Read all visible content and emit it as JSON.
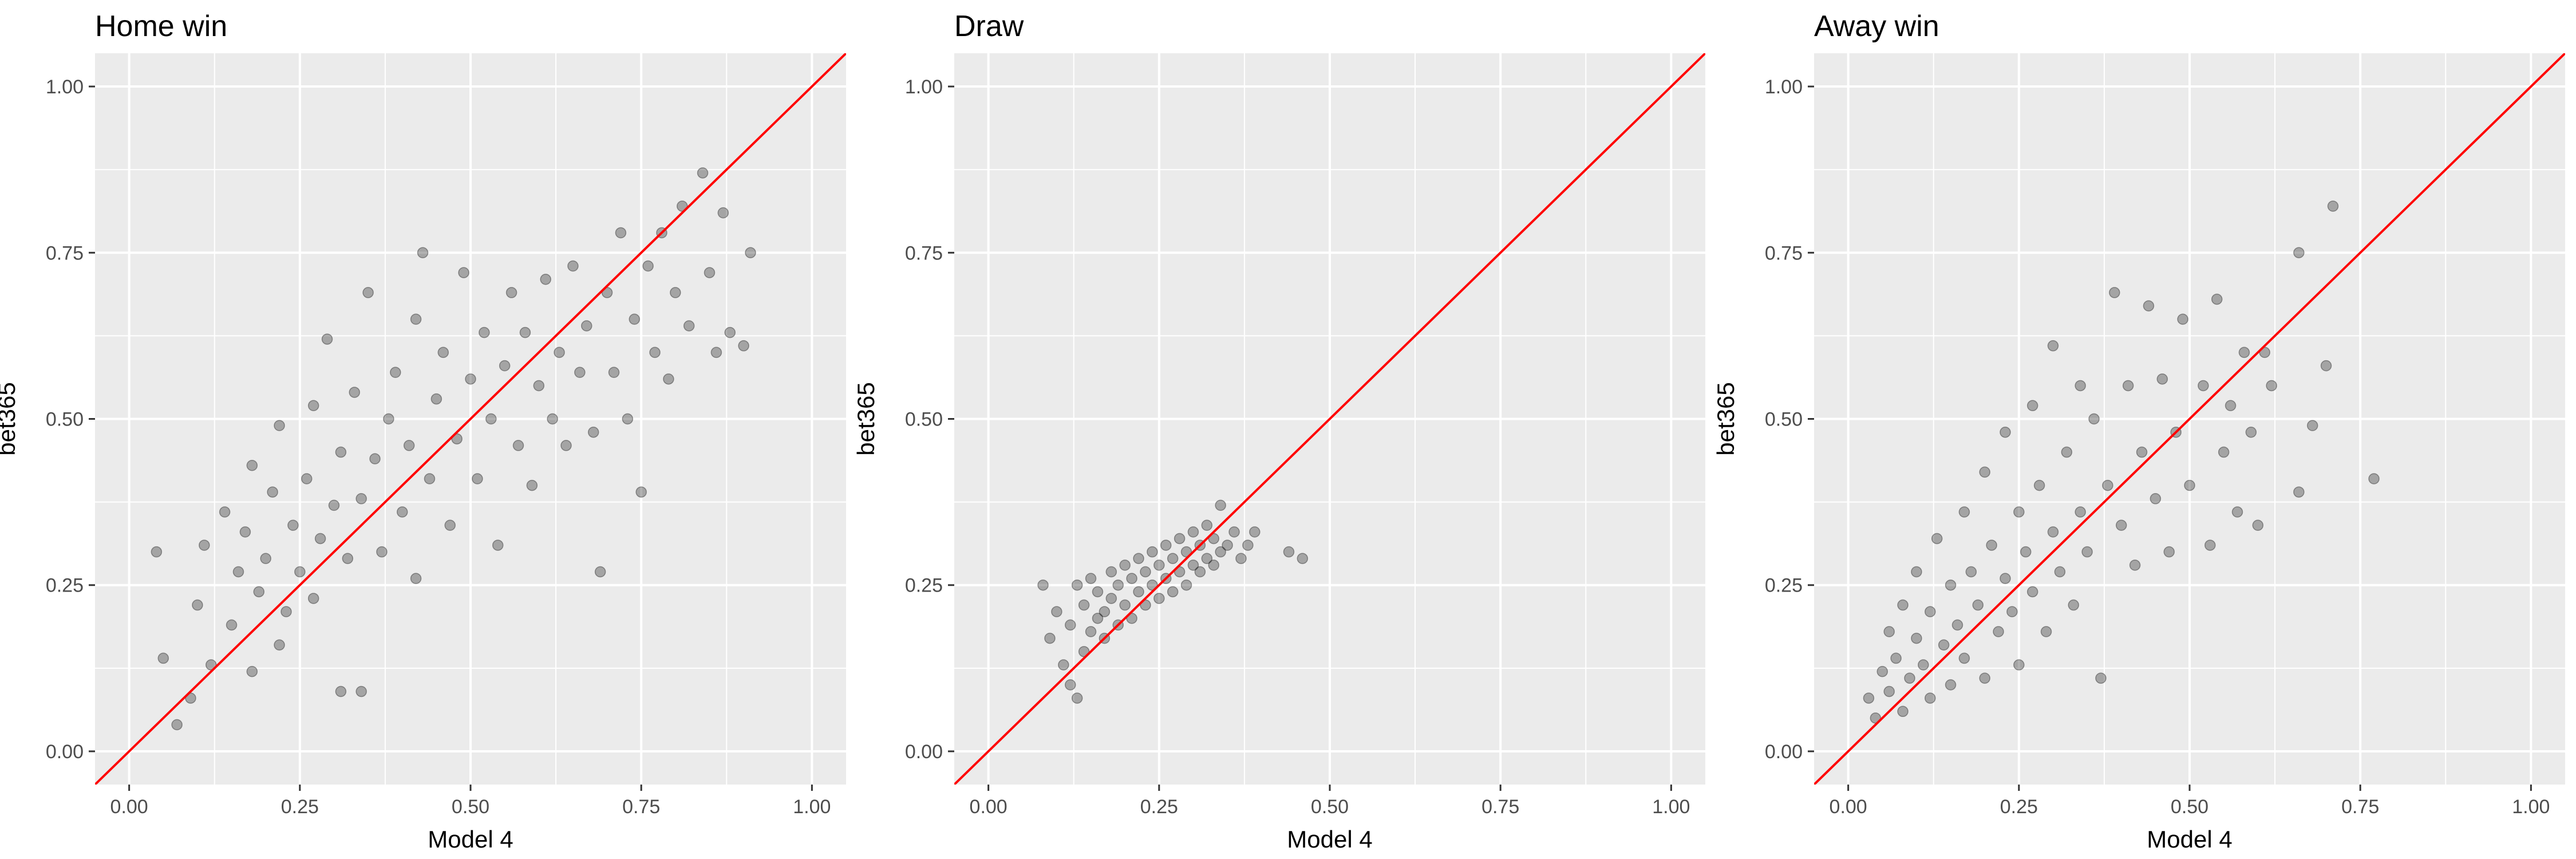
{
  "chart_data": [
    {
      "type": "scatter",
      "title": "Home win",
      "xlabel": "Model 4",
      "ylabel": "bet365",
      "xlim": [
        -0.05,
        1.05
      ],
      "ylim": [
        -0.05,
        1.05
      ],
      "xticks": [
        "0.00",
        "0.25",
        "0.50",
        "0.75",
        "1.00"
      ],
      "yticks": [
        "0.00",
        "0.25",
        "0.50",
        "0.75",
        "1.00"
      ],
      "reference_line": {
        "label": "y = x",
        "color": "#ff0000"
      },
      "point_color": "#000000",
      "point_alpha": 0.3,
      "grid": true,
      "series": [
        {
          "points": [
            [
              0.04,
              0.3
            ],
            [
              0.05,
              0.14
            ],
            [
              0.07,
              0.04
            ],
            [
              0.09,
              0.08
            ],
            [
              0.1,
              0.22
            ],
            [
              0.11,
              0.31
            ],
            [
              0.12,
              0.13
            ],
            [
              0.14,
              0.36
            ],
            [
              0.15,
              0.19
            ],
            [
              0.16,
              0.27
            ],
            [
              0.17,
              0.33
            ],
            [
              0.18,
              0.43
            ],
            [
              0.18,
              0.12
            ],
            [
              0.19,
              0.24
            ],
            [
              0.2,
              0.29
            ],
            [
              0.21,
              0.39
            ],
            [
              0.22,
              0.49
            ],
            [
              0.22,
              0.16
            ],
            [
              0.23,
              0.21
            ],
            [
              0.24,
              0.34
            ],
            [
              0.25,
              0.27
            ],
            [
              0.26,
              0.41
            ],
            [
              0.27,
              0.52
            ],
            [
              0.27,
              0.23
            ],
            [
              0.28,
              0.32
            ],
            [
              0.29,
              0.62
            ],
            [
              0.3,
              0.37
            ],
            [
              0.31,
              0.09
            ],
            [
              0.31,
              0.45
            ],
            [
              0.32,
              0.29
            ],
            [
              0.33,
              0.54
            ],
            [
              0.34,
              0.09
            ],
            [
              0.34,
              0.38
            ],
            [
              0.35,
              0.69
            ],
            [
              0.36,
              0.44
            ],
            [
              0.37,
              0.3
            ],
            [
              0.38,
              0.5
            ],
            [
              0.39,
              0.57
            ],
            [
              0.4,
              0.36
            ],
            [
              0.41,
              0.46
            ],
            [
              0.42,
              0.65
            ],
            [
              0.42,
              0.26
            ],
            [
              0.43,
              0.75
            ],
            [
              0.44,
              0.41
            ],
            [
              0.45,
              0.53
            ],
            [
              0.46,
              0.6
            ],
            [
              0.47,
              0.34
            ],
            [
              0.48,
              0.47
            ],
            [
              0.49,
              0.72
            ],
            [
              0.5,
              0.56
            ],
            [
              0.51,
              0.41
            ],
            [
              0.52,
              0.63
            ],
            [
              0.53,
              0.5
            ],
            [
              0.54,
              0.31
            ],
            [
              0.55,
              0.58
            ],
            [
              0.56,
              0.69
            ],
            [
              0.57,
              0.46
            ],
            [
              0.58,
              0.63
            ],
            [
              0.59,
              0.4
            ],
            [
              0.6,
              0.55
            ],
            [
              0.61,
              0.71
            ],
            [
              0.62,
              0.5
            ],
            [
              0.63,
              0.6
            ],
            [
              0.64,
              0.46
            ],
            [
              0.65,
              0.73
            ],
            [
              0.66,
              0.57
            ],
            [
              0.67,
              0.64
            ],
            [
              0.68,
              0.48
            ],
            [
              0.69,
              0.27
            ],
            [
              0.7,
              0.69
            ],
            [
              0.71,
              0.57
            ],
            [
              0.72,
              0.78
            ],
            [
              0.73,
              0.5
            ],
            [
              0.74,
              0.65
            ],
            [
              0.75,
              0.39
            ],
            [
              0.76,
              0.73
            ],
            [
              0.77,
              0.6
            ],
            [
              0.78,
              0.78
            ],
            [
              0.79,
              0.56
            ],
            [
              0.8,
              0.69
            ],
            [
              0.81,
              0.82
            ],
            [
              0.82,
              0.64
            ],
            [
              0.84,
              0.87
            ],
            [
              0.85,
              0.72
            ],
            [
              0.86,
              0.6
            ],
            [
              0.87,
              0.81
            ],
            [
              0.88,
              0.63
            ],
            [
              0.9,
              0.61
            ],
            [
              0.91,
              0.75
            ]
          ]
        }
      ]
    },
    {
      "type": "scatter",
      "title": "Draw",
      "xlabel": "Model 4",
      "ylabel": "bet365",
      "xlim": [
        -0.05,
        1.05
      ],
      "ylim": [
        -0.05,
        1.05
      ],
      "xticks": [
        "0.00",
        "0.25",
        "0.50",
        "0.75",
        "1.00"
      ],
      "yticks": [
        "0.00",
        "0.25",
        "0.50",
        "0.75",
        "1.00"
      ],
      "reference_line": {
        "label": "y = x",
        "color": "#ff0000"
      },
      "point_color": "#000000",
      "point_alpha": 0.3,
      "grid": true,
      "series": [
        {
          "points": [
            [
              0.08,
              0.25
            ],
            [
              0.09,
              0.17
            ],
            [
              0.1,
              0.21
            ],
            [
              0.11,
              0.13
            ],
            [
              0.12,
              0.1
            ],
            [
              0.12,
              0.19
            ],
            [
              0.13,
              0.25
            ],
            [
              0.13,
              0.08
            ],
            [
              0.14,
              0.15
            ],
            [
              0.14,
              0.22
            ],
            [
              0.15,
              0.18
            ],
            [
              0.15,
              0.26
            ],
            [
              0.16,
              0.2
            ],
            [
              0.16,
              0.24
            ],
            [
              0.17,
              0.17
            ],
            [
              0.17,
              0.21
            ],
            [
              0.18,
              0.27
            ],
            [
              0.18,
              0.23
            ],
            [
              0.19,
              0.19
            ],
            [
              0.19,
              0.25
            ],
            [
              0.2,
              0.22
            ],
            [
              0.2,
              0.28
            ],
            [
              0.21,
              0.2
            ],
            [
              0.21,
              0.26
            ],
            [
              0.22,
              0.24
            ],
            [
              0.22,
              0.29
            ],
            [
              0.23,
              0.22
            ],
            [
              0.23,
              0.27
            ],
            [
              0.24,
              0.25
            ],
            [
              0.24,
              0.3
            ],
            [
              0.25,
              0.23
            ],
            [
              0.25,
              0.28
            ],
            [
              0.26,
              0.26
            ],
            [
              0.26,
              0.31
            ],
            [
              0.27,
              0.24
            ],
            [
              0.27,
              0.29
            ],
            [
              0.28,
              0.27
            ],
            [
              0.28,
              0.32
            ],
            [
              0.29,
              0.25
            ],
            [
              0.29,
              0.3
            ],
            [
              0.3,
              0.28
            ],
            [
              0.3,
              0.33
            ],
            [
              0.31,
              0.27
            ],
            [
              0.31,
              0.31
            ],
            [
              0.32,
              0.29
            ],
            [
              0.32,
              0.34
            ],
            [
              0.33,
              0.28
            ],
            [
              0.33,
              0.32
            ],
            [
              0.34,
              0.3
            ],
            [
              0.34,
              0.37
            ],
            [
              0.35,
              0.31
            ],
            [
              0.36,
              0.33
            ],
            [
              0.37,
              0.29
            ],
            [
              0.38,
              0.31
            ],
            [
              0.39,
              0.33
            ],
            [
              0.44,
              0.3
            ],
            [
              0.46,
              0.29
            ]
          ]
        }
      ]
    },
    {
      "type": "scatter",
      "title": "Away win",
      "xlabel": "Model 4",
      "ylabel": "bet365",
      "xlim": [
        -0.05,
        1.05
      ],
      "ylim": [
        -0.05,
        1.05
      ],
      "xticks": [
        "0.00",
        "0.25",
        "0.50",
        "0.75",
        "1.00"
      ],
      "yticks": [
        "0.00",
        "0.25",
        "0.50",
        "0.75",
        "1.00"
      ],
      "reference_line": {
        "label": "y = x",
        "color": "#ff0000"
      },
      "point_color": "#000000",
      "point_alpha": 0.3,
      "grid": true,
      "series": [
        {
          "points": [
            [
              0.03,
              0.08
            ],
            [
              0.04,
              0.05
            ],
            [
              0.05,
              0.12
            ],
            [
              0.06,
              0.18
            ],
            [
              0.06,
              0.09
            ],
            [
              0.07,
              0.14
            ],
            [
              0.08,
              0.22
            ],
            [
              0.08,
              0.06
            ],
            [
              0.09,
              0.11
            ],
            [
              0.1,
              0.17
            ],
            [
              0.1,
              0.27
            ],
            [
              0.11,
              0.13
            ],
            [
              0.12,
              0.21
            ],
            [
              0.12,
              0.08
            ],
            [
              0.13,
              0.32
            ],
            [
              0.14,
              0.16
            ],
            [
              0.15,
              0.25
            ],
            [
              0.15,
              0.1
            ],
            [
              0.16,
              0.19
            ],
            [
              0.17,
              0.36
            ],
            [
              0.17,
              0.14
            ],
            [
              0.18,
              0.27
            ],
            [
              0.19,
              0.22
            ],
            [
              0.2,
              0.42
            ],
            [
              0.2,
              0.11
            ],
            [
              0.21,
              0.31
            ],
            [
              0.22,
              0.18
            ],
            [
              0.23,
              0.26
            ],
            [
              0.23,
              0.48
            ],
            [
              0.24,
              0.21
            ],
            [
              0.25,
              0.36
            ],
            [
              0.25,
              0.13
            ],
            [
              0.26,
              0.3
            ],
            [
              0.27,
              0.52
            ],
            [
              0.27,
              0.24
            ],
            [
              0.28,
              0.4
            ],
            [
              0.29,
              0.18
            ],
            [
              0.3,
              0.33
            ],
            [
              0.3,
              0.61
            ],
            [
              0.31,
              0.27
            ],
            [
              0.32,
              0.45
            ],
            [
              0.33,
              0.22
            ],
            [
              0.34,
              0.36
            ],
            [
              0.34,
              0.55
            ],
            [
              0.35,
              0.3
            ],
            [
              0.36,
              0.5
            ],
            [
              0.37,
              0.11
            ],
            [
              0.38,
              0.4
            ],
            [
              0.39,
              0.69
            ],
            [
              0.4,
              0.34
            ],
            [
              0.41,
              0.55
            ],
            [
              0.42,
              0.28
            ],
            [
              0.43,
              0.45
            ],
            [
              0.44,
              0.67
            ],
            [
              0.45,
              0.38
            ],
            [
              0.46,
              0.56
            ],
            [
              0.47,
              0.3
            ],
            [
              0.48,
              0.48
            ],
            [
              0.49,
              0.65
            ],
            [
              0.5,
              0.4
            ],
            [
              0.52,
              0.55
            ],
            [
              0.53,
              0.31
            ],
            [
              0.54,
              0.68
            ],
            [
              0.55,
              0.45
            ],
            [
              0.56,
              0.52
            ],
            [
              0.57,
              0.36
            ],
            [
              0.58,
              0.6
            ],
            [
              0.59,
              0.48
            ],
            [
              0.6,
              0.34
            ],
            [
              0.61,
              0.6
            ],
            [
              0.62,
              0.55
            ],
            [
              0.66,
              0.75
            ],
            [
              0.66,
              0.39
            ],
            [
              0.68,
              0.49
            ],
            [
              0.7,
              0.58
            ],
            [
              0.71,
              0.82
            ],
            [
              0.77,
              0.41
            ]
          ]
        }
      ]
    }
  ]
}
